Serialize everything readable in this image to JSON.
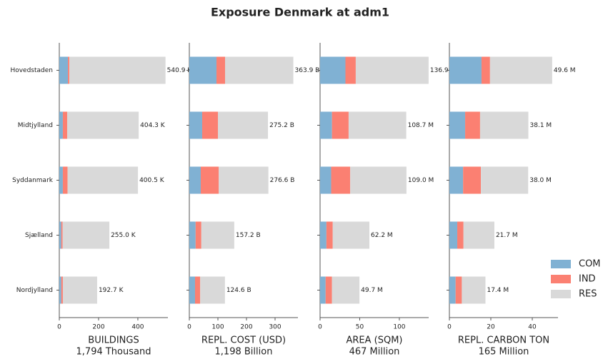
{
  "title": "Exposure Denmark at adm1",
  "categories": [
    "Hovedstaden",
    "Midtjylland",
    "Syddanmark",
    "Sjælland",
    "Nordjylland"
  ],
  "legend": [
    {
      "name": "COM",
      "color": "#80b1d3"
    },
    {
      "name": "IND",
      "color": "#fb8072"
    },
    {
      "name": "RES",
      "color": "#d9d9d9"
    }
  ],
  "chart_data": [
    {
      "type": "bar",
      "orientation": "horizontal",
      "xlabel": "BUILDINGS",
      "xlabel_sub": "1,794 Thousand",
      "xlim": [
        0,
        553
      ],
      "xticks": [
        0,
        200,
        400
      ],
      "series": [
        {
          "values": [
            44,
            18,
            18,
            10,
            10
          ]
        },
        {
          "values": [
            7,
            22,
            24,
            7,
            8
          ]
        },
        {
          "values": [
            489.9,
            364.3,
            358.5,
            238,
            174.7
          ]
        }
      ],
      "totals": [
        540.9,
        404.3,
        400.5,
        255.0,
        192.7
      ],
      "total_labels": [
        "540.9 K",
        "404.3 K",
        "400.5 K",
        "255.0 K",
        "192.7 K"
      ]
    },
    {
      "type": "bar",
      "orientation": "horizontal",
      "xlabel": "REPL. COST (USD)",
      "xlabel_sub": "1,198 Billion",
      "xlim": [
        0,
        380
      ],
      "xticks": [
        0,
        100,
        200,
        300
      ],
      "series": [
        {
          "values": [
            95,
            45,
            40,
            22,
            20
          ]
        },
        {
          "values": [
            30,
            55,
            63,
            20,
            18
          ]
        },
        {
          "values": [
            238.9,
            175.2,
            173.6,
            115.2,
            86.6
          ]
        }
      ],
      "totals": [
        363.9,
        275.2,
        276.6,
        157.2,
        124.6
      ],
      "total_labels": [
        "363.9 B",
        "275.2 B",
        "276.6 B",
        "157.2 B",
        "124.6 B"
      ]
    },
    {
      "type": "bar",
      "orientation": "horizontal",
      "xlabel": "AREA (SQM)",
      "xlabel_sub": "467 Million",
      "xlim": [
        0,
        137
      ],
      "xticks": [
        0,
        50,
        100
      ],
      "series": [
        {
          "values": [
            32,
            15,
            14,
            8,
            7
          ]
        },
        {
          "values": [
            13,
            21,
            24,
            8,
            8
          ]
        },
        {
          "values": [
            91.9,
            72.7,
            71.0,
            46.2,
            34.7
          ]
        }
      ],
      "totals": [
        136.9,
        108.7,
        109.0,
        62.2,
        49.7
      ],
      "total_labels": [
        "136.9 M",
        "108.7 M",
        "109.0 M",
        "62.2 M",
        "49.7 M"
      ]
    },
    {
      "type": "bar",
      "orientation": "horizontal",
      "xlabel": "REPL. CARBON TON",
      "xlabel_sub": "165 Million",
      "xlim": [
        0,
        52.4
      ],
      "xticks": [
        0,
        20,
        40
      ],
      "series": [
        {
          "values": [
            15.5,
            7.6,
            6.6,
            3.8,
            3
          ]
        },
        {
          "values": [
            4.1,
            7.2,
            8.6,
            3,
            3
          ]
        },
        {
          "values": [
            30.0,
            23.3,
            22.8,
            14.9,
            11.4
          ]
        }
      ],
      "totals": [
        49.6,
        38.1,
        38.0,
        21.7,
        17.4
      ],
      "total_labels": [
        "49.6 M",
        "38.1 M",
        "38.0 M",
        "21.7 M",
        "17.4 M"
      ]
    }
  ]
}
